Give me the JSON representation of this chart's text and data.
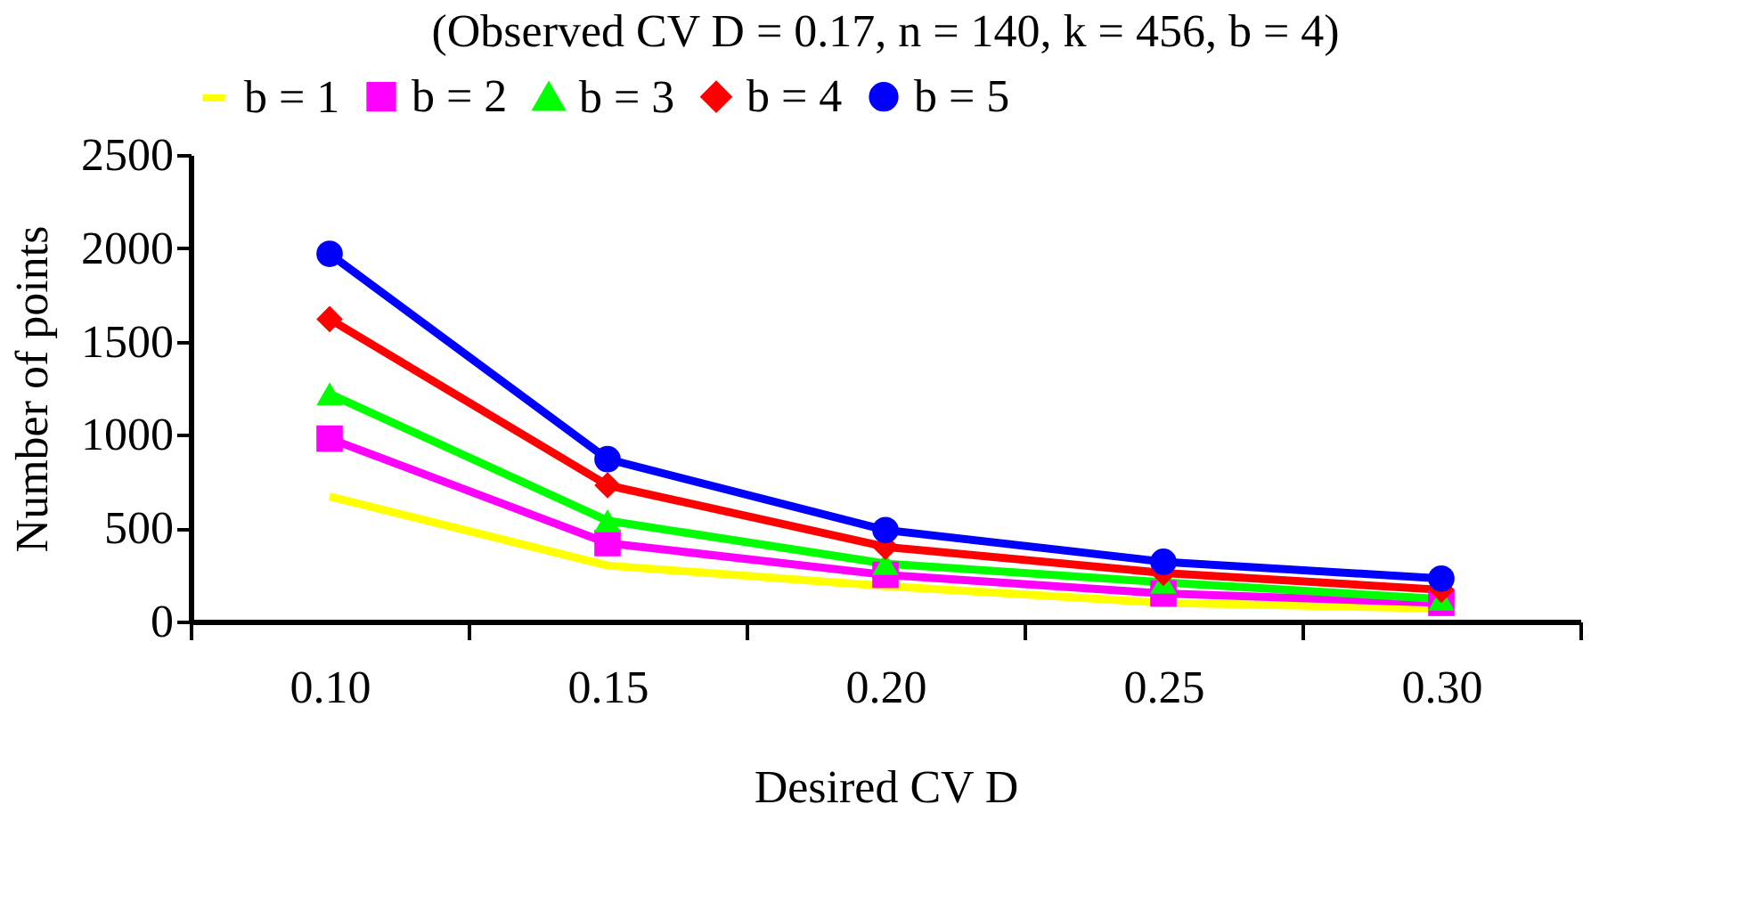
{
  "chart_data": {
    "type": "line",
    "title": "(Observed CV D = 0.17, n = 140, k = 456, b = 4)",
    "xlabel": "Desired CV D",
    "ylabel": "Number of points",
    "categories": [
      "0.10",
      "0.15",
      "0.20",
      "0.25",
      "0.30"
    ],
    "series": [
      {
        "name": "b = 1",
        "color": "#ffff00",
        "marker": "none",
        "values": [
          670,
          300,
          190,
          100,
          70
        ]
      },
      {
        "name": "b = 2",
        "color": "#ff00ff",
        "marker": "square",
        "values": [
          980,
          420,
          250,
          150,
          100
        ]
      },
      {
        "name": "b = 3",
        "color": "#00ff00",
        "marker": "triangle",
        "values": [
          1220,
          540,
          310,
          210,
          120
        ]
      },
      {
        "name": "b = 4",
        "color": "#ff0000",
        "marker": "diamond",
        "values": [
          1620,
          730,
          400,
          260,
          170
        ]
      },
      {
        "name": "b = 5",
        "color": "#0000ff",
        "marker": "circle",
        "values": [
          1970,
          870,
          490,
          320,
          230
        ]
      }
    ],
    "ylim": [
      0,
      2500
    ],
    "yticks": [
      0,
      500,
      1000,
      1500,
      2000,
      2500
    ],
    "grid": false,
    "legend": "top",
    "line_style": "solid"
  }
}
